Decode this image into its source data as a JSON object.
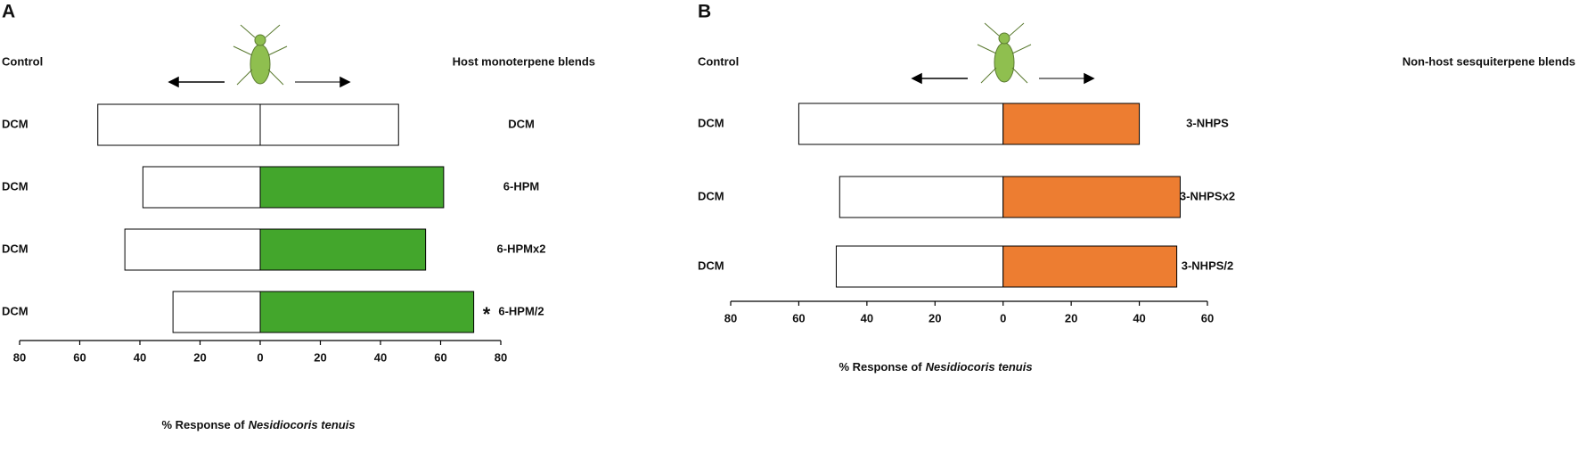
{
  "chart_data": [
    {
      "type": "diverging-bar",
      "panel": "A",
      "left_categories": [
        "DCM",
        "DCM",
        "DCM",
        "DCM"
      ],
      "right_categories": [
        "DCM",
        "6-HPM",
        "6-HPMx2",
        "6-HPM/2"
      ],
      "series": [
        {
          "name": "Control",
          "color": "#ffffff",
          "values": [
            -54,
            -39,
            -45,
            -29
          ]
        },
        {
          "name": "Host monoterpene blends",
          "color": "#43a62c",
          "values": [
            46,
            61,
            55,
            71
          ]
        }
      ],
      "first_row_color": "#ffffff",
      "annotation": {
        "text": "*",
        "row": 3
      },
      "xlabel": [
        "% Response of",
        "Nesidiocoris tenuis"
      ],
      "xlim": [
        -80,
        80
      ],
      "xticks": [
        {
          "value": -80,
          "label": "80"
        },
        {
          "value": -60,
          "label": "60"
        },
        {
          "value": -40,
          "label": "40"
        },
        {
          "value": -20,
          "label": "20"
        },
        0,
        20,
        40,
        60,
        80
      ]
    },
    {
      "type": "diverging-bar",
      "panel": "B",
      "left_categories": [
        "DCM",
        "DCM",
        "DCM"
      ],
      "right_categories": [
        "3-NHPS",
        "3-NHPSx2",
        "3-NHPS/2"
      ],
      "series": [
        {
          "name": "Control",
          "color": "#ffffff",
          "values": [
            -60,
            -48,
            -49
          ]
        },
        {
          "name": "Non-host sesquiterpene blends",
          "color": "#ed7d31",
          "values": [
            40,
            52,
            51
          ]
        }
      ],
      "xlabel": [
        "% Response of",
        "Nesidiocoris tenuis"
      ],
      "xlim": [
        -80,
        60
      ],
      "xticks": [
        {
          "value": -80,
          "label": "80"
        },
        {
          "value": -60,
          "label": "60"
        },
        {
          "value": -40,
          "label": "40"
        },
        {
          "value": -20,
          "label": "20"
        },
        0,
        20,
        40,
        60
      ]
    }
  ]
}
